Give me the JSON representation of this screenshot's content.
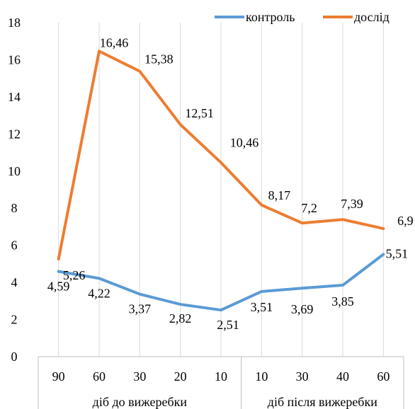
{
  "chart_data": {
    "type": "line",
    "categories": [
      "90",
      "60",
      "30",
      "20",
      "10",
      "10",
      "30",
      "40",
      "60"
    ],
    "groups": [
      {
        "label": "діб до вижеребки",
        "count": 5
      },
      {
        "label": "діб після вижеребки",
        "count": 4
      }
    ],
    "series": [
      {
        "name": "контроль",
        "color": "#5b9bd5",
        "values": [
          4.59,
          4.22,
          3.37,
          2.82,
          2.51,
          3.51,
          3.69,
          3.85,
          5.51
        ],
        "labels": [
          "4,59",
          "4,22",
          "3,37",
          "2,82",
          "2,51",
          "3,51",
          "3,69",
          "3,85",
          "5,51"
        ]
      },
      {
        "name": "дослід",
        "color": "#ed7d31",
        "values": [
          5.26,
          16.46,
          15.38,
          12.51,
          10.46,
          8.17,
          7.2,
          7.39,
          6.9
        ],
        "labels": [
          "5,26",
          "16,46",
          "15,38",
          "12,51",
          "10,46",
          "8,17",
          "7,2",
          "7,39",
          "6,9"
        ]
      }
    ],
    "ylim": [
      0,
      18
    ],
    "yticks": [
      "0",
      "2",
      "4",
      "6",
      "8",
      "10",
      "12",
      "14",
      "16",
      "18"
    ],
    "grid": "vertical",
    "legend": "top-right",
    "title": "",
    "xlabel": "",
    "ylabel": ""
  }
}
